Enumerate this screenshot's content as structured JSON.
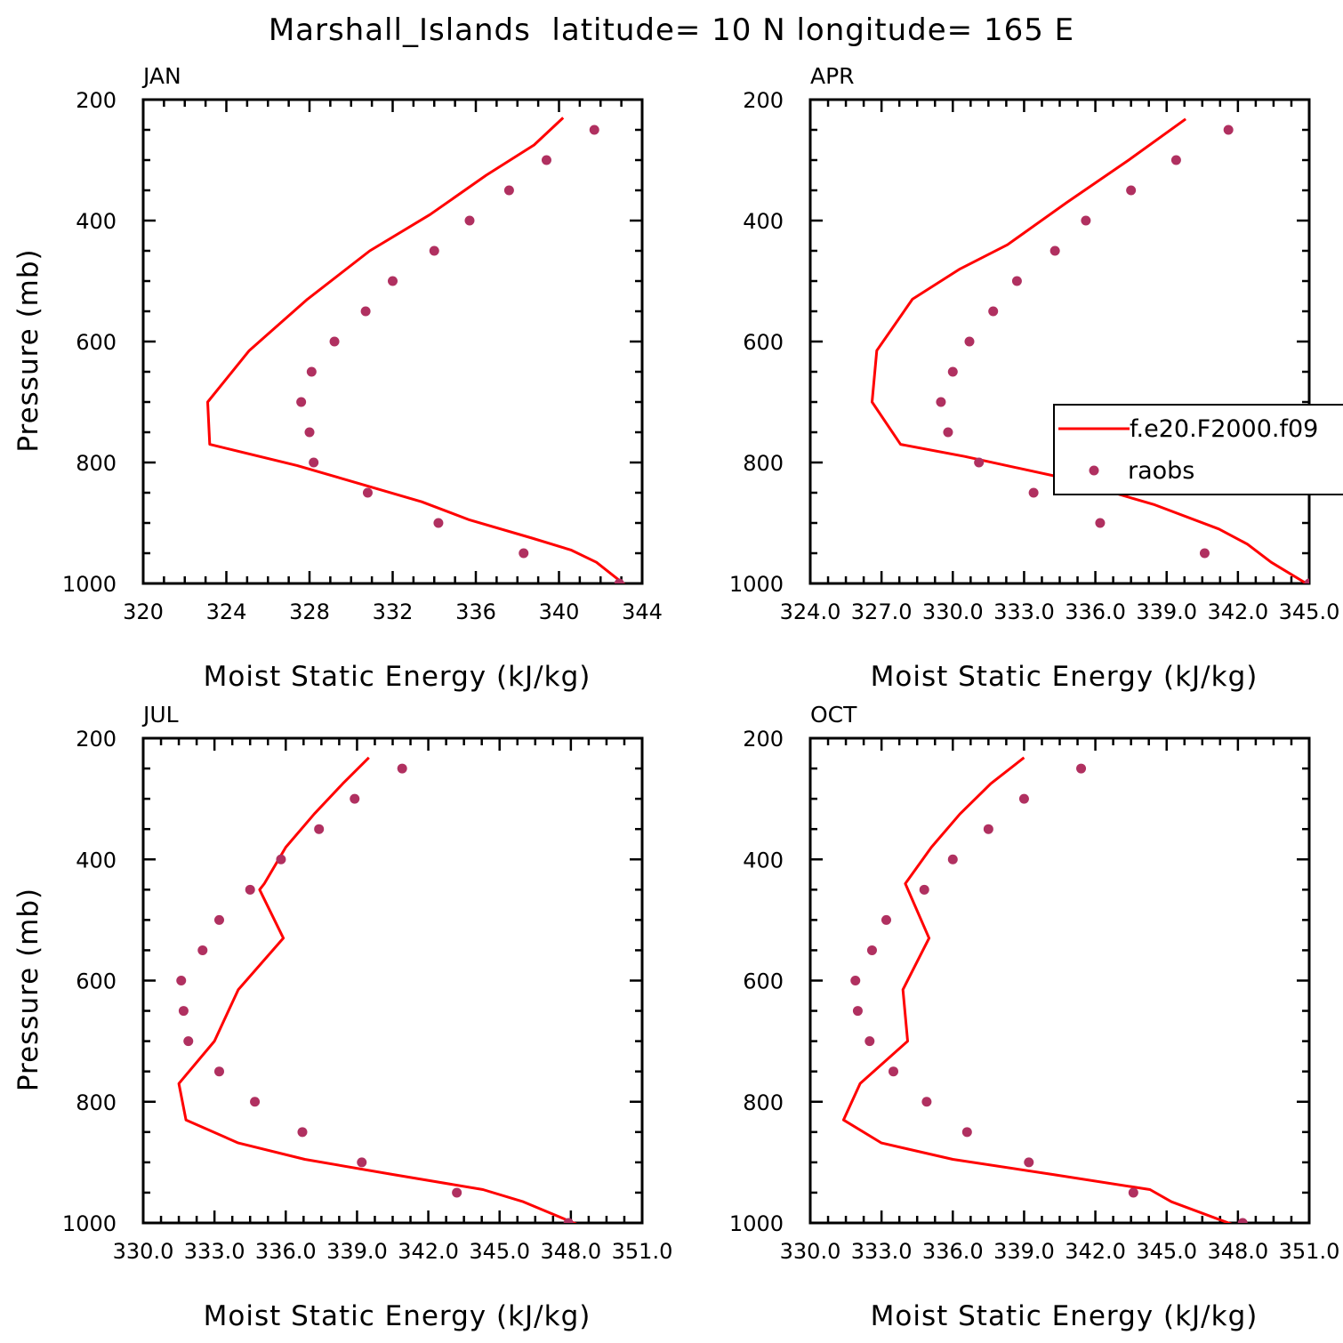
{
  "figure": {
    "title": "Marshall_Islands  latitude= 10 N longitude= 165 E"
  },
  "legend": {
    "model_label": "f.e20.F2000.f09",
    "obs_label": "raobs"
  },
  "colors": {
    "model": "#ff0000",
    "obs": "#b03060",
    "axis": "#000000"
  },
  "chart_data": [
    {
      "type": "line",
      "panel": "JAN",
      "xlabel": "Moist Static Energy (kJ/kg)",
      "ylabel": "Pressure (mb)",
      "xlim": [
        320,
        344
      ],
      "ylim": [
        200,
        1000
      ],
      "y_inverted": true,
      "xticks": [
        320,
        324,
        328,
        332,
        336,
        340,
        344
      ],
      "xtick_labels": [
        "320",
        "324",
        "328",
        "332",
        "336",
        "340",
        "344"
      ],
      "yticks": [
        200,
        400,
        600,
        800,
        1000
      ],
      "ytick_labels": [
        "200",
        "400",
        "600",
        "800",
        "1000"
      ],
      "show_ylabel": true,
      "show_legend": false,
      "series": [
        {
          "name": "f.e20.F2000.f09",
          "kind": "line",
          "x": [
            340.2,
            338.8,
            336.5,
            333.8,
            330.9,
            327.9,
            325.1,
            323.1,
            323.2,
            327.4,
            333.4,
            335.7,
            338.7,
            340.6,
            341.8,
            343.2
          ],
          "y": [
            230,
            275,
            325,
            390,
            450,
            530,
            615,
            700,
            770,
            805,
            865,
            895,
            925,
            945,
            965,
            1003
          ]
        },
        {
          "name": "raobs",
          "kind": "scatter",
          "x": [
            341.7,
            339.4,
            337.6,
            335.7,
            334.0,
            332.0,
            330.7,
            329.2,
            328.1,
            327.6,
            328.0,
            328.2,
            330.8,
            334.2,
            338.3,
            342.9
          ],
          "y": [
            250,
            300,
            350,
            400,
            450,
            500,
            550,
            600,
            650,
            700,
            750,
            800,
            850,
            900,
            950,
            1000
          ]
        }
      ]
    },
    {
      "type": "line",
      "panel": "APR",
      "xlabel": "Moist Static Energy (kJ/kg)",
      "ylabel": "",
      "xlim": [
        324.0,
        345.0
      ],
      "ylim": [
        200,
        1000
      ],
      "y_inverted": true,
      "xticks": [
        324.0,
        327.0,
        330.0,
        333.0,
        336.0,
        339.0,
        342.0,
        345.0
      ],
      "xtick_labels": [
        "324.0",
        "327.0",
        "330.0",
        "333.0",
        "336.0",
        "339.0",
        "342.0",
        "345.0"
      ],
      "yticks": [
        200,
        400,
        600,
        800,
        1000
      ],
      "ytick_labels": [
        "200",
        "400",
        "600",
        "800",
        "1000"
      ],
      "show_ylabel": false,
      "show_legend": true,
      "series": [
        {
          "name": "f.e20.F2000.f09",
          "kind": "line",
          "x": [
            339.8,
            337.4,
            334.8,
            332.3,
            330.3,
            328.3,
            326.8,
            326.6,
            327.8,
            330.5,
            334.6,
            338.5,
            341.2,
            342.4,
            343.4,
            345.0
          ],
          "y": [
            232,
            300,
            370,
            440,
            480,
            530,
            615,
            700,
            770,
            790,
            825,
            870,
            910,
            935,
            965,
            1003
          ]
        },
        {
          "name": "raobs",
          "kind": "scatter",
          "x": [
            341.6,
            339.4,
            337.5,
            335.6,
            334.3,
            332.7,
            331.7,
            330.7,
            330.0,
            329.5,
            329.8,
            331.1,
            333.4,
            336.2,
            340.6,
            345.0
          ],
          "y": [
            250,
            300,
            350,
            400,
            450,
            500,
            550,
            600,
            650,
            700,
            750,
            800,
            850,
            900,
            950,
            1000
          ]
        }
      ]
    },
    {
      "type": "line",
      "panel": "JUL",
      "xlabel": "Moist Static Energy (kJ/kg)",
      "ylabel": "Pressure (mb)",
      "xlim": [
        330.0,
        351.0
      ],
      "ylim": [
        200,
        1000
      ],
      "y_inverted": true,
      "xticks": [
        330.0,
        333.0,
        336.0,
        339.0,
        342.0,
        345.0,
        348.0,
        351.0
      ],
      "xtick_labels": [
        "330.0",
        "333.0",
        "336.0",
        "339.0",
        "342.0",
        "345.0",
        "348.0",
        "351.0"
      ],
      "yticks": [
        200,
        400,
        600,
        800,
        1000
      ],
      "ytick_labels": [
        "200",
        "400",
        "600",
        "800",
        "1000"
      ],
      "show_ylabel": true,
      "show_legend": false,
      "series": [
        {
          "name": "f.e20.F2000.f09",
          "kind": "line",
          "x": [
            339.5,
            338.4,
            337.2,
            336.0,
            335.1,
            334.9,
            335.9,
            334.0,
            333.0,
            331.5,
            331.8,
            334.0,
            336.8,
            340.5,
            344.3,
            346.0,
            348.3
          ],
          "y": [
            232,
            275,
            325,
            380,
            440,
            450,
            530,
            615,
            700,
            770,
            830,
            868,
            895,
            920,
            945,
            965,
            1003
          ]
        },
        {
          "name": "raobs",
          "kind": "scatter",
          "x": [
            340.9,
            338.9,
            337.4,
            335.8,
            334.5,
            333.2,
            332.5,
            331.6,
            331.7,
            331.9,
            333.2,
            334.7,
            336.7,
            339.2,
            343.2,
            347.9
          ],
          "y": [
            250,
            300,
            350,
            400,
            450,
            500,
            550,
            600,
            650,
            700,
            750,
            800,
            850,
            900,
            950,
            1000
          ]
        }
      ]
    },
    {
      "type": "line",
      "panel": "OCT",
      "xlabel": "Moist Static Energy (kJ/kg)",
      "ylabel": "",
      "xlim": [
        330.0,
        351.0
      ],
      "ylim": [
        200,
        1000
      ],
      "y_inverted": true,
      "xticks": [
        330.0,
        333.0,
        336.0,
        339.0,
        342.0,
        345.0,
        348.0,
        351.0
      ],
      "xtick_labels": [
        "330.0",
        "333.0",
        "336.0",
        "339.0",
        "342.0",
        "345.0",
        "348.0",
        "351.0"
      ],
      "yticks": [
        200,
        400,
        600,
        800,
        1000
      ],
      "ytick_labels": [
        "200",
        "400",
        "600",
        "800",
        "1000"
      ],
      "show_ylabel": false,
      "show_legend": false,
      "series": [
        {
          "name": "f.e20.F2000.f09",
          "kind": "line",
          "x": [
            339.0,
            337.6,
            336.3,
            335.1,
            334.0,
            335.0,
            333.9,
            334.1,
            332.1,
            331.4,
            333.0,
            336.0,
            340.2,
            344.3,
            345.2,
            347.8
          ],
          "y": [
            232,
            275,
            325,
            380,
            440,
            530,
            615,
            700,
            770,
            830,
            868,
            895,
            920,
            945,
            965,
            1003
          ]
        },
        {
          "name": "raobs",
          "kind": "scatter",
          "x": [
            341.4,
            339.0,
            337.5,
            336.0,
            334.8,
            333.2,
            332.6,
            331.9,
            332.0,
            332.5,
            333.5,
            334.9,
            336.6,
            339.2,
            343.6,
            348.2
          ],
          "y": [
            250,
            300,
            350,
            400,
            450,
            500,
            550,
            600,
            650,
            700,
            750,
            800,
            850,
            900,
            950,
            1000
          ]
        }
      ]
    }
  ]
}
